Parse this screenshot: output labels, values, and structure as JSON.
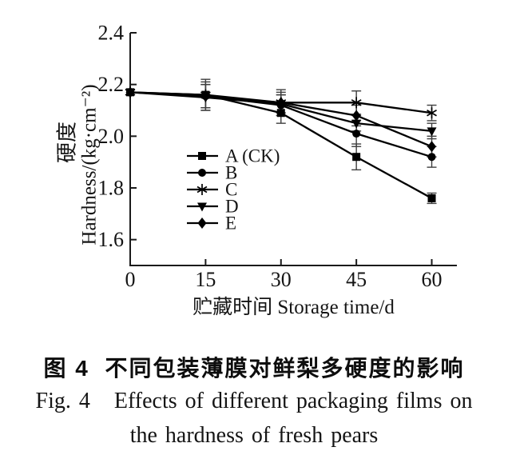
{
  "figure": {
    "caption_zh": "图 4  不同包装薄膜对鲜梨多硬度的影响",
    "caption_en_line1": "Fig. 4   Effects of different packaging films on",
    "caption_en_line2": "the hardness of fresh pears"
  },
  "chart_data": {
    "type": "line",
    "title": "",
    "xlabel": "贮藏时间 Storage time/d",
    "ylabel_zh": "硬度",
    "ylabel_en": "Hardness/(kg·cm⁻²)",
    "x": [
      0,
      15,
      30,
      45,
      60
    ],
    "xlim": [
      0,
      65
    ],
    "ylim": [
      1.5,
      2.4
    ],
    "xtick_values": [
      0,
      15,
      30,
      45,
      60
    ],
    "xtick_labels": [
      "0",
      "15",
      "30",
      "45",
      "60"
    ],
    "ytick_values": [
      2.4,
      2.2,
      2.0,
      1.8,
      1.6
    ],
    "ytick_labels": [
      "2.4",
      "2.2",
      "2.0",
      "1.8",
      "1.6"
    ],
    "grid": false,
    "legend_position": "inside-lower-left",
    "colors": {
      "line": "#000000",
      "marker": "#000000",
      "error_bar": "#3f3f3f",
      "axis": "#1a1a1a",
      "background": "#ffffff"
    },
    "series": [
      {
        "key": "a",
        "name": "A (CK)",
        "marker": "square",
        "values": [
          2.17,
          2.16,
          2.09,
          1.92,
          1.76
        ],
        "errors": [
          0,
          0.05,
          0.04,
          0.05,
          0.02
        ]
      },
      {
        "key": "b",
        "name": "B",
        "marker": "circle",
        "values": [
          2.17,
          2.155,
          2.12,
          2.01,
          1.92
        ],
        "errors": [
          0,
          0.045,
          0.04,
          0.05,
          0.04
        ]
      },
      {
        "key": "c",
        "name": "C",
        "marker": "asterisk",
        "values": [
          2.17,
          2.16,
          2.13,
          2.13,
          2.09
        ],
        "errors": [
          0,
          0.06,
          0.05,
          0.045,
          0.03
        ]
      },
      {
        "key": "d",
        "name": "D",
        "marker": "triangle-down",
        "values": [
          2.17,
          2.15,
          2.125,
          2.05,
          2.02
        ],
        "errors": [
          0,
          0.05,
          0.035,
          0.03,
          0.03
        ]
      },
      {
        "key": "e",
        "name": "E",
        "marker": "diamond",
        "values": [
          2.17,
          2.155,
          2.13,
          2.08,
          1.96
        ],
        "errors": [
          0,
          0.045,
          0.04,
          0.04,
          0.04
        ]
      }
    ]
  }
}
